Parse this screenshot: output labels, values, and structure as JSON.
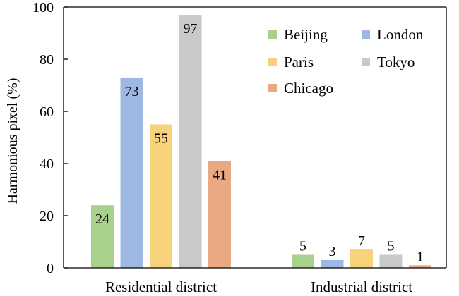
{
  "chart_data": {
    "type": "bar",
    "ylabel": "Harmonious pixel (%)",
    "xlabel": "",
    "ylim": [
      0,
      100
    ],
    "yticks": [
      0,
      20,
      40,
      60,
      80,
      100
    ],
    "grid": false,
    "legend_position": "top-right",
    "categories": [
      "Residential district",
      "Industrial district"
    ],
    "series": [
      {
        "name": "Beijing",
        "color": "#a9d18e",
        "values": [
          24,
          5
        ]
      },
      {
        "name": "London",
        "color": "#9db8e2",
        "values": [
          73,
          3
        ]
      },
      {
        "name": "Paris",
        "color": "#f6d27a",
        "values": [
          55,
          7
        ]
      },
      {
        "name": "Tokyo",
        "color": "#c9c9c9",
        "values": [
          97,
          5
        ]
      },
      {
        "name": "Chicago",
        "color": "#eba983",
        "values": [
          41,
          1
        ]
      }
    ],
    "legend_order": [
      "Beijing",
      "London",
      "Paris",
      "Tokyo",
      "Chicago"
    ]
  }
}
